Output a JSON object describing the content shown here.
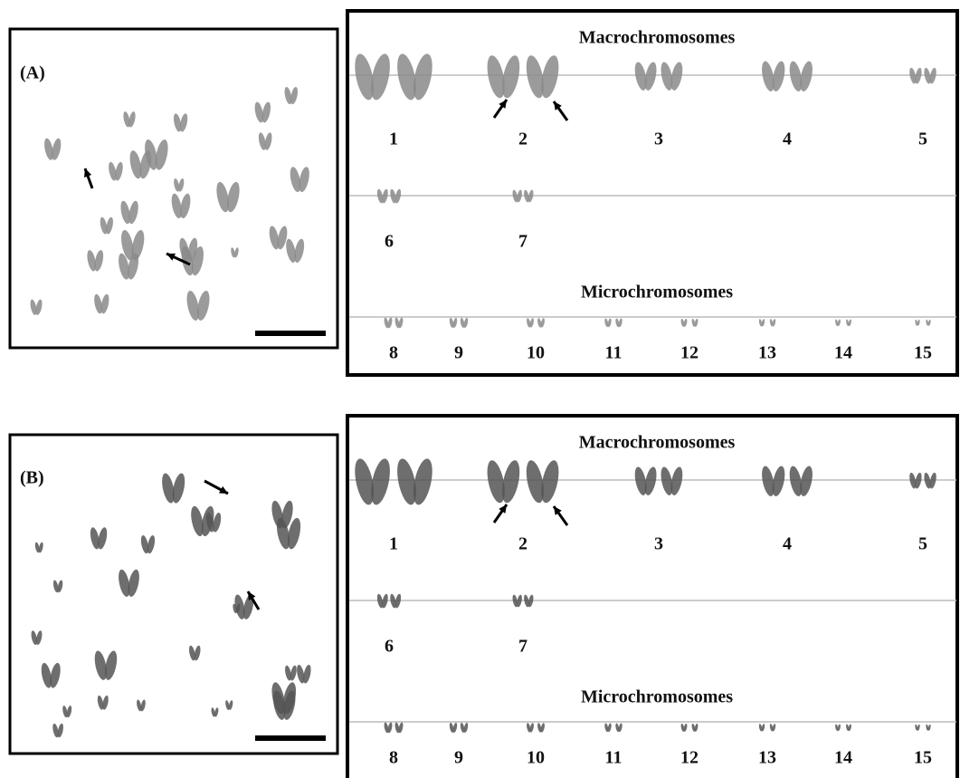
{
  "panels": [
    {
      "label": "(A)",
      "macro_title": "Macrochromosomes",
      "macro_labels": [
        "1",
        "2",
        "3",
        "4",
        "5",
        "6",
        "7"
      ],
      "micro_title": "Microchromosomes",
      "micro_labels": [
        "8",
        "9",
        "10",
        "11",
        "12",
        "13",
        "14",
        "15"
      ]
    },
    {
      "label": "(B)",
      "macro_title": "Macrochromosomes",
      "macro_labels": [
        "1",
        "2",
        "3",
        "4",
        "5",
        "6",
        "7"
      ],
      "micro_title": "Microchromosomes",
      "micro_labels": [
        "8",
        "9",
        "10",
        "11",
        "12",
        "13",
        "14",
        "15"
      ]
    }
  ]
}
